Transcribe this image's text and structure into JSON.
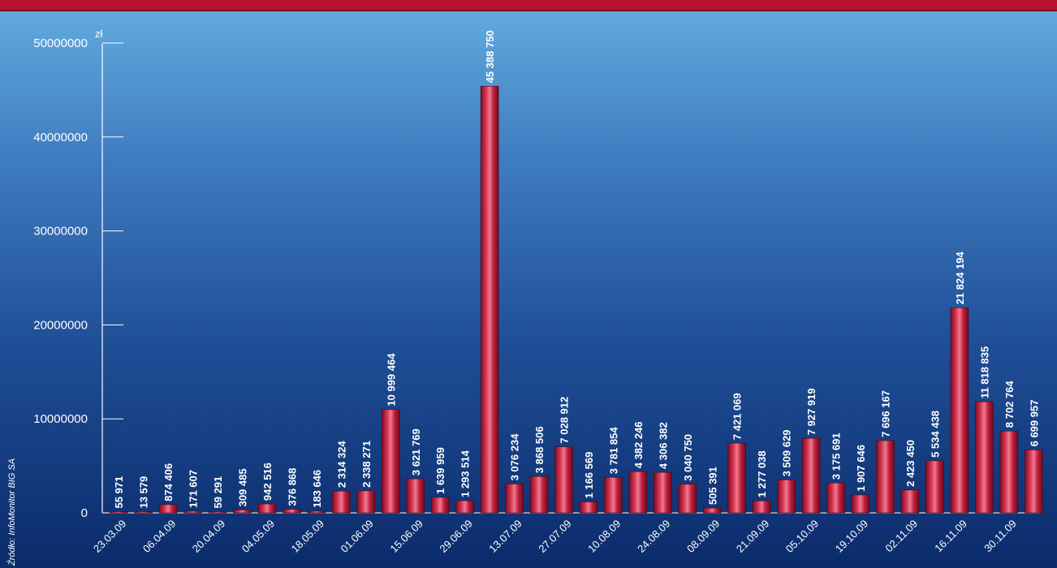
{
  "source": "Źródło: InfoMonitor BIG SA",
  "colors": {
    "bar": "#c01e3c",
    "bar_highlight": "#f07a8e",
    "title_bar": "#b5122e"
  },
  "chart_data": {
    "type": "bar",
    "ylabel": "zł",
    "ylim": [
      0,
      50000000
    ],
    "yticks": [
      0,
      10000000,
      20000000,
      30000000,
      40000000,
      50000000
    ],
    "ytick_labels": [
      "0",
      "10000000",
      "20000000",
      "30000000",
      "40000000",
      "50000000"
    ],
    "x_tick_labels": [
      "23.03.09",
      "06.04.09",
      "20.04.09",
      "04.05.09",
      "18.05.09",
      "01.06.09",
      "15.06.09",
      "29.06.09",
      "13.07.09",
      "27.07.09",
      "10.08.09",
      "24.08.09",
      "08.09.09",
      "21.09.09",
      "05.10.09",
      "19.10.09",
      "02.11.09",
      "16.11.09",
      "30.11.09"
    ],
    "values": [
      55971,
      13579,
      874406,
      171607,
      59291,
      309485,
      942516,
      376868,
      183646,
      2314324,
      2338271,
      10999464,
      3621769,
      1639959,
      1293514,
      45388750,
      3076234,
      3868506,
      7028912,
      1166569,
      3781854,
      4382246,
      4306382,
      3040750,
      505391,
      7421069,
      1277038,
      3509629,
      7927919,
      3175691,
      1907646,
      7696167,
      2423450,
      5534438,
      21824194,
      11818835,
      8702764,
      6699957
    ],
    "value_labels": [
      "55 971",
      "13 579",
      "874 406",
      "171 607",
      "59 291",
      "309 485",
      "942 516",
      "376 868",
      "183 646",
      "2 314 324",
      "2 338 271",
      "10 999 464",
      "3 621 769",
      "1 639 959",
      "1 293 514",
      "45 388 750",
      "3 076 234",
      "3 868 506",
      "7 028 912",
      "1 166 569",
      "3 781 854",
      "4 382 246",
      "4 306 382",
      "3 040 750",
      "505 391",
      "7 421 069",
      "1 277 038",
      "3 509 629",
      "7 927 919",
      "3 175 691",
      "1 907 646",
      "7 696 167",
      "2 423 450",
      "5 534 438",
      "21 824 194",
      "11 818 835",
      "8 702 764",
      "6 699 957"
    ],
    "grid": false,
    "legend": "none"
  }
}
